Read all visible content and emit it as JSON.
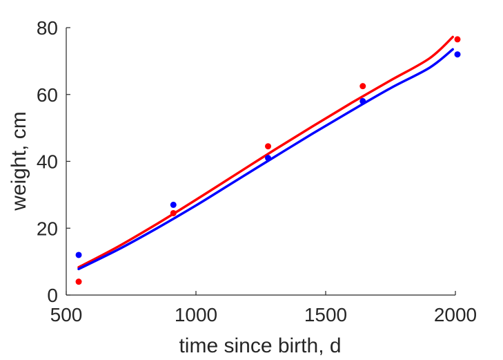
{
  "chart_data": {
    "type": "scatter",
    "title": "",
    "xlabel": "time since birth, d",
    "ylabel": "weight, cm",
    "xlim": [
      500,
      2000
    ],
    "ylim": [
      0,
      80
    ],
    "xticks": [
      500,
      1000,
      1500,
      2000
    ],
    "yticks": [
      0,
      20,
      40,
      60,
      80
    ],
    "grid": false,
    "legend": "none",
    "series": [
      {
        "color": "#ff0000",
        "points": {
          "x": [
            548,
            913,
            1278,
            1643,
            2008
          ],
          "y": [
            4,
            24.5,
            44.5,
            62.5,
            76.5
          ]
        },
        "fit": {
          "x": [
            548,
            700,
            850,
            1000,
            1150,
            1300,
            1450,
            1600,
            1750,
            1900,
            1990
          ],
          "y": [
            8.3,
            14.5,
            21.3,
            28.5,
            35.9,
            43.3,
            50.5,
            57.5,
            64.2,
            70.8,
            77.2
          ]
        }
      },
      {
        "color": "#0000ff",
        "points": {
          "x": [
            548,
            913,
            1278,
            1643,
            2008
          ],
          "y": [
            12,
            27,
            41,
            58,
            72
          ]
        },
        "fit": {
          "x": [
            548,
            700,
            850,
            1000,
            1150,
            1300,
            1450,
            1600,
            1750,
            1900,
            1990
          ],
          "y": [
            7.8,
            13.6,
            20.0,
            26.8,
            34.0,
            41.2,
            48.3,
            55.2,
            61.9,
            68.0,
            73.5
          ]
        }
      }
    ]
  }
}
